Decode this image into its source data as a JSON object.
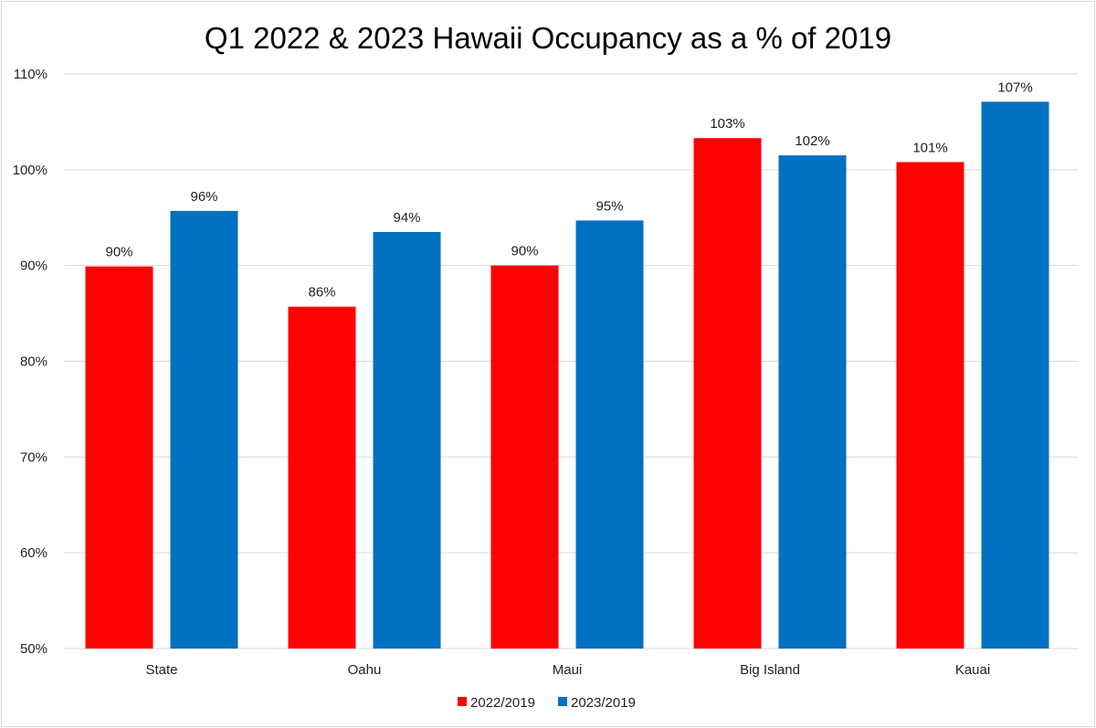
{
  "chart_data": {
    "type": "bar",
    "title": "Q1 2022 & 2023 Hawaii Occupancy as a % of 2019",
    "xlabel": "",
    "ylabel": "",
    "categories": [
      "State",
      "Oahu",
      "Maui",
      "Big Island",
      "Kauai"
    ],
    "series": [
      {
        "name": "2022/2019",
        "color": "#ff0000",
        "values": [
          89.9,
          85.7,
          90.0,
          103.3,
          100.8
        ],
        "labels": [
          "90%",
          "86%",
          "90%",
          "103%",
          "101%"
        ]
      },
      {
        "name": "2023/2019",
        "color": "#0070c0",
        "values": [
          95.7,
          93.5,
          94.7,
          101.5,
          107.1
        ],
        "labels": [
          "96%",
          "94%",
          "95%",
          "102%",
          "107%"
        ]
      }
    ],
    "ylim": [
      50,
      110
    ],
    "yticks": [
      50,
      60,
      70,
      80,
      90,
      100,
      110
    ],
    "ytick_labels": [
      "50%",
      "60%",
      "70%",
      "80%",
      "90%",
      "100%",
      "110%"
    ],
    "grid": true,
    "legend_position": "bottom"
  }
}
